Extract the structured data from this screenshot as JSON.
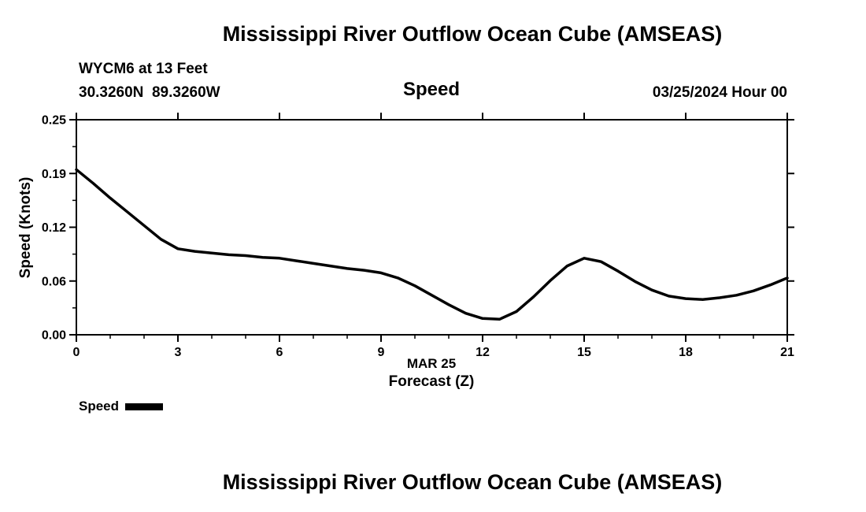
{
  "page": {
    "background": "#ffffff",
    "foreground": "#000000"
  },
  "header": {
    "title": "Mississippi River Outflow Ocean Cube (AMSEAS)",
    "station": "WYCM6 at 13 Feet",
    "coords": "30.3260N  89.3260W",
    "plot_title": "Speed",
    "datetime": "03/25/2024 Hour 00"
  },
  "footer": {
    "title": "Mississippi River Outflow Ocean Cube (AMSEAS)"
  },
  "legend": {
    "label": "Speed",
    "swatch_color": "#000000"
  },
  "chart_data": {
    "type": "line",
    "title": "Speed",
    "ylabel": "Speed (Knots)",
    "xlabel_line1": "MAR 25",
    "xlabel_line2": "Forecast (Z)",
    "xlim": [
      0,
      21
    ],
    "ylim": [
      0.0,
      0.25
    ],
    "xticks": [
      0,
      3,
      6,
      9,
      12,
      15,
      18,
      21
    ],
    "x_minor_ticks": [
      1,
      2,
      4,
      5,
      7,
      8,
      10,
      11,
      13,
      14,
      16,
      17,
      19,
      20
    ],
    "yticks": [
      0.0,
      0.0625,
      0.125,
      0.1875,
      0.25
    ],
    "ytick_labels": [
      "0.00",
      "0.06",
      "0.12",
      "0.19",
      "0.25"
    ],
    "y_minor_ticks": [
      0.03125,
      0.09375,
      0.15625,
      0.21875
    ],
    "grid": false,
    "legend_position": "below-left",
    "line_color": "#000000",
    "line_width": 3.5,
    "series": [
      {
        "name": "Speed",
        "x": [
          0,
          0.5,
          1,
          1.5,
          2,
          2.5,
          3,
          3.5,
          4,
          4.5,
          5,
          5.5,
          6,
          6.5,
          7,
          7.5,
          8,
          8.5,
          9,
          9.5,
          10,
          10.5,
          11,
          11.5,
          12,
          12.5,
          13,
          13.5,
          14,
          14.5,
          15,
          15.5,
          16,
          16.5,
          17,
          17.5,
          18,
          18.5,
          19,
          19.5,
          20,
          20.5,
          21
        ],
        "y": [
          0.192,
          0.176,
          0.159,
          0.143,
          0.127,
          0.111,
          0.1,
          0.097,
          0.095,
          0.093,
          0.092,
          0.09,
          0.089,
          0.086,
          0.083,
          0.08,
          0.077,
          0.075,
          0.072,
          0.066,
          0.057,
          0.046,
          0.035,
          0.025,
          0.019,
          0.018,
          0.027,
          0.044,
          0.063,
          0.08,
          0.089,
          0.085,
          0.074,
          0.062,
          0.052,
          0.045,
          0.042,
          0.041,
          0.043,
          0.046,
          0.051,
          0.058,
          0.066
        ]
      }
    ]
  }
}
